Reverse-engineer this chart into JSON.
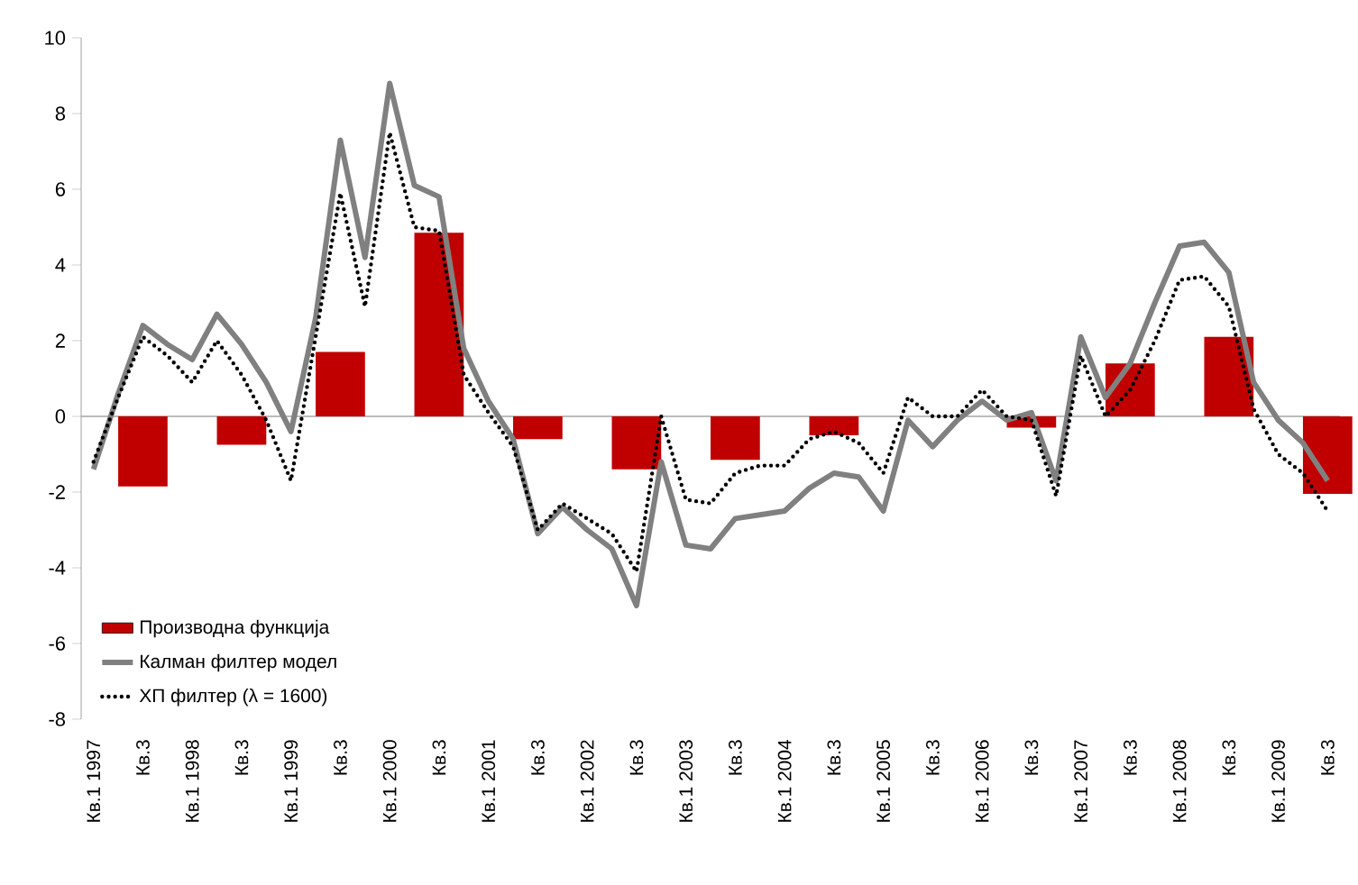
{
  "chart_data": {
    "type": "line",
    "categories": [
      "Кв.1 1997",
      null,
      "Кв.3",
      null,
      "Кв.1 1998",
      null,
      "Кв.3",
      null,
      "Кв.1 1999",
      null,
      "Кв.3",
      null,
      "Кв.1 2000",
      null,
      "Кв.3",
      null,
      "Кв.1 2001",
      null,
      "Кв.3",
      null,
      "Кв.1 2002",
      null,
      "Кв.3",
      null,
      "Кв.1 2003",
      null,
      "Кв.3",
      null,
      "Кв.1 2004",
      null,
      "Кв.3",
      null,
      "Кв.1 2005",
      null,
      "Кв.3",
      null,
      "Кв.1 2006",
      null,
      "Кв.3",
      null,
      "Кв.1 2007",
      null,
      "Кв.3",
      null,
      "Кв.1 2008",
      null,
      "Кв.3",
      null,
      "Кв.1 2009",
      null,
      "Кв.3"
    ],
    "series": [
      {
        "name": "Производна функција",
        "type": "bar",
        "color": "#c00000",
        "values": [
          null,
          null,
          -1.85,
          null,
          null,
          null,
          -0.75,
          null,
          null,
          null,
          1.7,
          null,
          null,
          null,
          4.85,
          null,
          null,
          null,
          -0.6,
          null,
          null,
          null,
          -1.4,
          null,
          null,
          null,
          -1.15,
          null,
          null,
          null,
          -0.5,
          null,
          null,
          null,
          null,
          null,
          null,
          null,
          -0.3,
          null,
          null,
          null,
          1.4,
          null,
          null,
          null,
          2.1,
          null,
          null,
          null,
          -2.05
        ]
      },
      {
        "name": "Калман филтер модел",
        "color": "#808080",
        "line_style": "solid",
        "values": [
          -1.4,
          0.6,
          2.4,
          1.9,
          1.5,
          2.7,
          1.9,
          0.9,
          -0.4,
          2.6,
          7.3,
          4.2,
          8.8,
          6.1,
          5.8,
          1.8,
          0.4,
          -0.6,
          -3.1,
          -2.4,
          -3.0,
          -3.5,
          -5.0,
          -1.2,
          -3.4,
          -3.5,
          -2.7,
          -2.6,
          -2.5,
          -1.9,
          -1.5,
          -1.6,
          -2.5,
          -0.1,
          -0.8,
          -0.1,
          0.4,
          -0.1,
          0.1,
          -1.7,
          2.1,
          0.5,
          1.4,
          3.0,
          4.5,
          4.6,
          3.8,
          0.9,
          -0.1,
          -0.7,
          -1.7
        ]
      },
      {
        "name": "ХП филтер (λ = 1600)",
        "color": "#000000",
        "line_style": "dotted",
        "values": [
          -1.2,
          0.5,
          2.1,
          1.6,
          0.9,
          2.0,
          1.1,
          -0.1,
          -1.7,
          2.1,
          5.9,
          2.9,
          7.5,
          5.0,
          4.9,
          1.1,
          0.1,
          -0.8,
          -3.0,
          -2.3,
          -2.7,
          -3.1,
          -4.1,
          0.0,
          -2.2,
          -2.3,
          -1.5,
          -1.3,
          -1.3,
          -0.6,
          -0.4,
          -0.7,
          -1.5,
          0.5,
          0.0,
          0.0,
          0.7,
          0.0,
          -0.1,
          -2.1,
          1.6,
          0.0,
          0.7,
          2.0,
          3.6,
          3.7,
          2.9,
          0.2,
          -1.0,
          -1.5,
          -2.5
        ]
      }
    ],
    "ylim": [
      -8,
      10
    ],
    "yticks": [
      -8,
      -6,
      -4,
      -2,
      0,
      2,
      4,
      6,
      8,
      10
    ],
    "ref_lines": [
      {
        "axis": "y",
        "value": 0,
        "color": "#a6a6a6"
      }
    ],
    "legend": "bottom left"
  }
}
